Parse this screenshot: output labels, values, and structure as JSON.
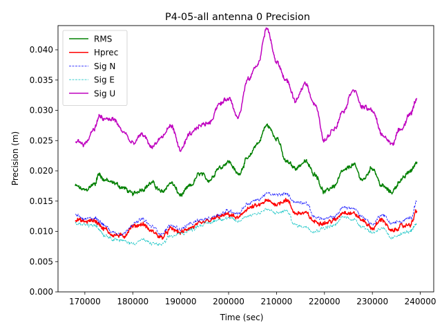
{
  "chart_data": {
    "type": "line",
    "title": "P4-05-all antenna 0 Precision",
    "xlabel": "Time (sec)",
    "ylabel": "Precision (m)",
    "xlim": [
      164400,
      242800
    ],
    "ylim": [
      0.0,
      0.044
    ],
    "x_ticks": [
      170000,
      180000,
      190000,
      200000,
      210000,
      220000,
      230000,
      240000
    ],
    "x_tick_labels": [
      "170000",
      "180000",
      "190000",
      "200000",
      "210000",
      "220000",
      "230000",
      "240000"
    ],
    "y_ticks": [
      0.0,
      0.005,
      0.01,
      0.015,
      0.02,
      0.025,
      0.03,
      0.035,
      0.04
    ],
    "y_tick_labels": [
      "0.000",
      "0.005",
      "0.010",
      "0.015",
      "0.020",
      "0.025",
      "0.030",
      "0.035",
      "0.040"
    ],
    "grid": false,
    "legend_position": "top-left",
    "x": [
      168000,
      170000,
      172000,
      173000,
      174000,
      176000,
      178000,
      180000,
      182000,
      184000,
      186000,
      188000,
      190000,
      192000,
      194000,
      196000,
      198000,
      200000,
      202000,
      204000,
      206000,
      208000,
      210000,
      212000,
      214000,
      216000,
      218000,
      220000,
      222000,
      224000,
      226000,
      228000,
      230000,
      232000,
      234000,
      236000,
      238000,
      239300
    ],
    "series": [
      {
        "name": "RMS",
        "color": "#008000",
        "style": "solid",
        "width": 1.5,
        "values": [
          0.0175,
          0.0168,
          0.0178,
          0.0195,
          0.0185,
          0.018,
          0.0172,
          0.0162,
          0.017,
          0.018,
          0.0165,
          0.018,
          0.016,
          0.0175,
          0.0195,
          0.0185,
          0.0205,
          0.0215,
          0.0195,
          0.022,
          0.0245,
          0.0275,
          0.0255,
          0.0215,
          0.0205,
          0.0215,
          0.0195,
          0.0165,
          0.0175,
          0.02,
          0.021,
          0.0185,
          0.0205,
          0.0175,
          0.0165,
          0.0185,
          0.02,
          0.0215
        ]
      },
      {
        "name": "Hprec",
        "color": "#ff0000",
        "style": "solid",
        "width": 1.5,
        "values": [
          0.012,
          0.0116,
          0.0118,
          0.0112,
          0.0104,
          0.0094,
          0.0092,
          0.0108,
          0.0112,
          0.01,
          0.009,
          0.0104,
          0.0098,
          0.0106,
          0.0112,
          0.0118,
          0.0124,
          0.0128,
          0.0122,
          0.0138,
          0.0142,
          0.015,
          0.0145,
          0.0152,
          0.013,
          0.013,
          0.0116,
          0.0114,
          0.0118,
          0.0132,
          0.013,
          0.0118,
          0.0105,
          0.012,
          0.01,
          0.0108,
          0.0112,
          0.0134
        ]
      },
      {
        "name": "Sig N",
        "color": "#0000ff",
        "style": "dashed",
        "width": 0.8,
        "values": [
          0.0127,
          0.012,
          0.0122,
          0.0118,
          0.011,
          0.0098,
          0.0096,
          0.0112,
          0.012,
          0.0108,
          0.0096,
          0.011,
          0.0104,
          0.0112,
          0.0118,
          0.0122,
          0.0128,
          0.0134,
          0.013,
          0.0146,
          0.0152,
          0.0162,
          0.016,
          0.0162,
          0.0148,
          0.0148,
          0.0124,
          0.012,
          0.0124,
          0.014,
          0.0138,
          0.0124,
          0.0112,
          0.0128,
          0.0114,
          0.0116,
          0.0122,
          0.015
        ]
      },
      {
        "name": "Sig E",
        "color": "#00bfbf",
        "style": "dashed",
        "width": 0.8,
        "values": [
          0.0113,
          0.011,
          0.011,
          0.0104,
          0.0094,
          0.0088,
          0.0084,
          0.008,
          0.0086,
          0.008,
          0.0078,
          0.0092,
          0.0096,
          0.0102,
          0.011,
          0.0114,
          0.012,
          0.0122,
          0.0116,
          0.0126,
          0.013,
          0.0136,
          0.013,
          0.0134,
          0.011,
          0.0108,
          0.01,
          0.0106,
          0.011,
          0.0124,
          0.012,
          0.0108,
          0.0098,
          0.0106,
          0.0088,
          0.0096,
          0.01,
          0.0112
        ]
      },
      {
        "name": "Sig U",
        "color": "#bf00bf",
        "style": "solid",
        "width": 1.5,
        "values": [
          0.025,
          0.0245,
          0.027,
          0.029,
          0.0285,
          0.0285,
          0.0265,
          0.0245,
          0.026,
          0.024,
          0.0255,
          0.0275,
          0.0235,
          0.026,
          0.0275,
          0.028,
          0.031,
          0.032,
          0.029,
          0.035,
          0.0375,
          0.0435,
          0.038,
          0.035,
          0.0315,
          0.0345,
          0.031,
          0.025,
          0.027,
          0.03,
          0.0335,
          0.0305,
          0.03,
          0.026,
          0.0245,
          0.027,
          0.0295,
          0.032
        ]
      }
    ]
  }
}
